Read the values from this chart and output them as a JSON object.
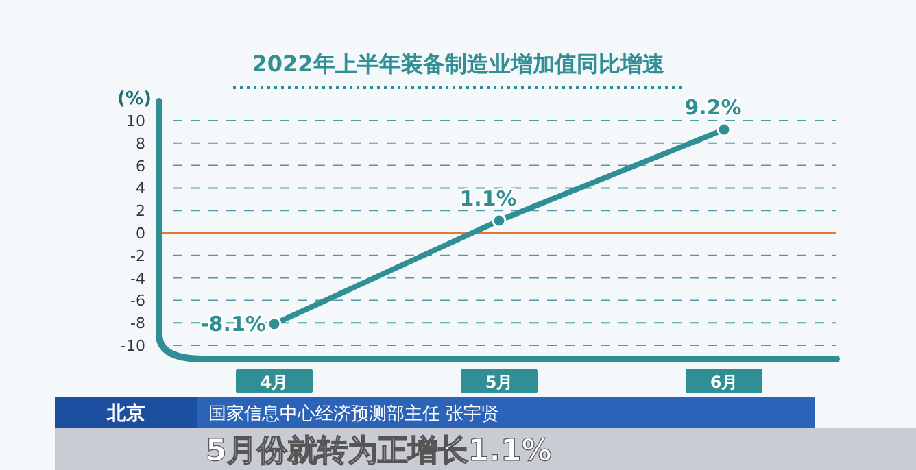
{
  "chart_data": {
    "type": "line",
    "title": "2022年上半年装备制造业增加值同比增速",
    "ylabel": "(%)",
    "categories": [
      "4月",
      "5月",
      "6月"
    ],
    "values": [
      -8.1,
      1.1,
      9.2
    ],
    "color": "#2f8f95",
    "ylim": [
      -10,
      10
    ],
    "yticks": [
      -10,
      -8,
      -6,
      -4,
      -2,
      0,
      2,
      4,
      6,
      8,
      10
    ],
    "grid": "y",
    "ref_lines": [
      {
        "axis": "y",
        "value": 0,
        "color": "#e07a3c"
      }
    ],
    "value_labels": [
      "-8.1%",
      "1.1%",
      "9.2%"
    ],
    "marker": "circle",
    "line_style": "solid",
    "annotations": [
      "北京",
      "国家信息中心经济预测部主任 张宇贤",
      "5月份就转为正增长1.1%"
    ]
  }
}
